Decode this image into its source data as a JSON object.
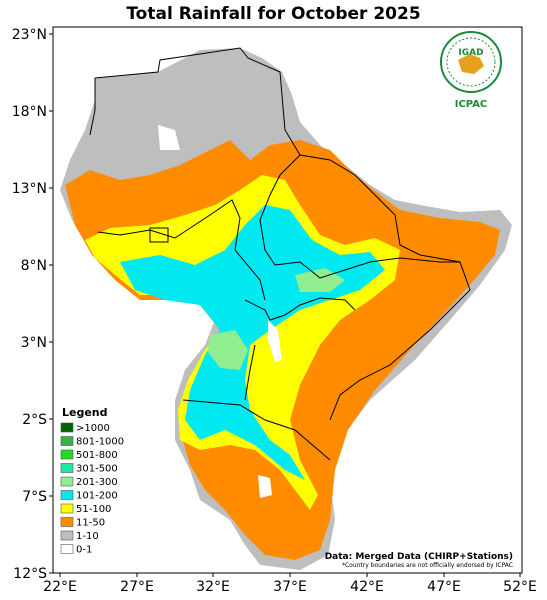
{
  "title": "Total Rainfall for October 2025",
  "axes": {
    "lat_labels": [
      "23°N",
      "18°N",
      "13°N",
      "8°N",
      "3°N",
      "2°S",
      "7°S",
      "12°S"
    ],
    "lon_labels": [
      "22°E",
      "27°E",
      "32°E",
      "37°E",
      "42°E",
      "47°E",
      "52°E"
    ]
  },
  "legend": {
    "title": "Legend",
    "items": [
      {
        "label": ">1000",
        "color": "#006400"
      },
      {
        "label": "801-1000",
        "color": "#3cb043"
      },
      {
        "label": "501-800",
        "color": "#22dd22"
      },
      {
        "label": "301-500",
        "color": "#20e8a0"
      },
      {
        "label": "201-300",
        "color": "#90ee90"
      },
      {
        "label": "101-200",
        "color": "#00e8f0"
      },
      {
        "label": "51-100",
        "color": "#ffff00"
      },
      {
        "label": "11-50",
        "color": "#ff8c00"
      },
      {
        "label": "1-10",
        "color": "#bebebe"
      },
      {
        "label": "0-1",
        "color": "#ffffff"
      }
    ]
  },
  "credit": "Data: Merged Data (CHIRP+Stations)",
  "note": "*Country boundaries are not officially endorsed by ICPAC",
  "logo": {
    "top": "IGAD",
    "bottom": "ICPAC",
    "color": "#1a8a3a"
  }
}
